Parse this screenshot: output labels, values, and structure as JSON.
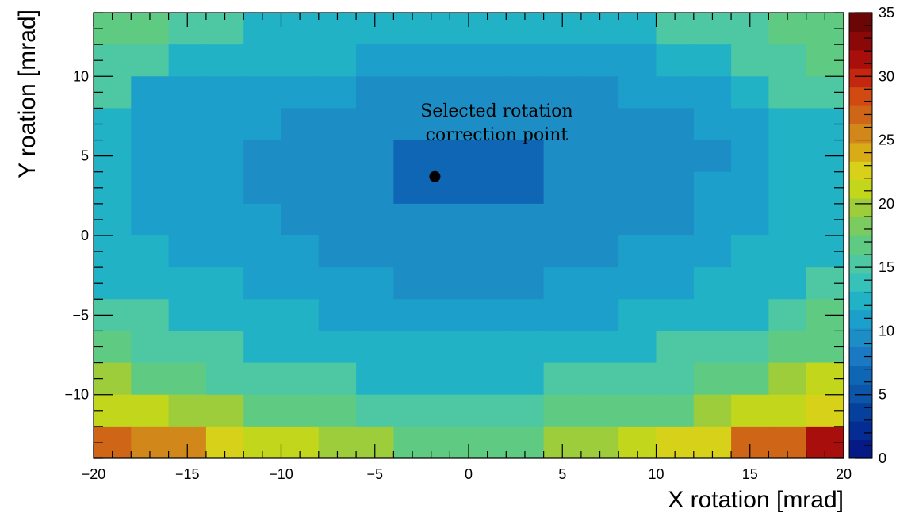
{
  "chart_data": {
    "type": "heatmap",
    "title": "",
    "xlabel": "X rotation [mrad]",
    "ylabel": "Y roation [mrad]",
    "xlim": [
      -20,
      20
    ],
    "ylim": [
      -14,
      14
    ],
    "x_edges": [
      -20,
      -18,
      -16,
      -14,
      -12,
      -10,
      -8,
      -6,
      -4,
      -2,
      0,
      2,
      4,
      6,
      8,
      10,
      12,
      14,
      16,
      18,
      20
    ],
    "y_edges": [
      14,
      12,
      10,
      8,
      6,
      4,
      2,
      0,
      -2,
      -4,
      -6,
      -8,
      -10,
      -12,
      -14
    ],
    "values": [
      [
        17,
        17,
        15,
        15,
        13,
        13,
        13,
        13,
        13,
        13,
        13,
        13,
        13,
        13,
        13,
        15,
        15,
        15,
        17,
        17
      ],
      [
        15,
        15,
        13,
        13,
        13,
        13,
        13,
        11,
        11,
        11,
        11,
        11,
        11,
        11,
        11,
        13,
        13,
        15,
        15,
        17
      ],
      [
        15,
        11,
        11,
        11,
        11,
        11,
        11,
        9,
        9,
        9,
        9,
        9,
        9,
        9,
        11,
        11,
        11,
        13,
        15,
        15
      ],
      [
        13,
        11,
        11,
        11,
        11,
        9,
        9,
        9,
        9,
        9,
        9,
        9,
        9,
        9,
        9,
        9,
        11,
        11,
        13,
        13
      ],
      [
        13,
        11,
        11,
        11,
        9,
        9,
        9,
        9,
        7,
        7,
        7,
        7,
        9,
        9,
        9,
        9,
        9,
        11,
        13,
        13
      ],
      [
        13,
        11,
        11,
        11,
        9,
        9,
        9,
        9,
        7,
        7,
        7,
        7,
        9,
        9,
        9,
        9,
        11,
        11,
        13,
        13
      ],
      [
        13,
        11,
        11,
        11,
        11,
        9,
        9,
        9,
        9,
        9,
        9,
        9,
        9,
        9,
        9,
        9,
        11,
        11,
        13,
        13
      ],
      [
        13,
        13,
        11,
        11,
        11,
        11,
        9,
        9,
        9,
        9,
        9,
        9,
        9,
        9,
        11,
        11,
        11,
        13,
        13,
        13
      ],
      [
        13,
        13,
        13,
        13,
        11,
        11,
        11,
        11,
        9,
        9,
        9,
        9,
        11,
        11,
        11,
        11,
        13,
        13,
        13,
        15
      ],
      [
        15,
        15,
        13,
        13,
        13,
        13,
        11,
        11,
        11,
        11,
        11,
        11,
        11,
        11,
        13,
        13,
        13,
        13,
        15,
        17
      ],
      [
        17,
        15,
        15,
        15,
        13,
        13,
        13,
        13,
        13,
        13,
        13,
        13,
        13,
        13,
        13,
        15,
        15,
        15,
        17,
        17
      ],
      [
        19,
        17,
        17,
        15,
        15,
        15,
        15,
        13,
        13,
        13,
        13,
        13,
        15,
        15,
        15,
        15,
        17,
        17,
        19,
        21
      ],
      [
        21,
        21,
        19,
        19,
        17,
        17,
        17,
        15,
        15,
        15,
        15,
        15,
        17,
        17,
        17,
        17,
        19,
        21,
        21,
        23
      ],
      [
        27,
        25,
        25,
        23,
        21,
        21,
        19,
        19,
        17,
        17,
        17,
        17,
        19,
        19,
        21,
        23,
        23,
        27,
        27,
        31
      ]
    ],
    "colorbar": {
      "range": [
        0,
        35
      ],
      "ticks": [
        0,
        5,
        10,
        15,
        20,
        25,
        30,
        35
      ]
    },
    "x_ticks": [
      -20,
      -15,
      -10,
      -5,
      0,
      5,
      10,
      15,
      20
    ],
    "y_ticks": [
      -10,
      -5,
      0,
      5,
      10
    ],
    "marker": {
      "x": -1.8,
      "y": 3.7,
      "color": "#000000"
    },
    "annotation": {
      "line1": "Selected rotation",
      "line2": "correction point"
    },
    "palette": [
      "#061a86",
      "#042c92",
      "#05409d",
      "#0c55a9",
      "#0f66b4",
      "#1a79c2",
      "#1c8dc5",
      "#1c9fca",
      "#22b2c6",
      "#36c2b8",
      "#4ec7a3",
      "#5fcb82",
      "#7acc60",
      "#9dcd3b",
      "#c2d61b",
      "#d8d11a",
      "#d9ac17",
      "#d2871a",
      "#cf6516",
      "#d04a12",
      "#c32710",
      "#a80e0c",
      "#8a0808",
      "#6b0606"
    ]
  }
}
